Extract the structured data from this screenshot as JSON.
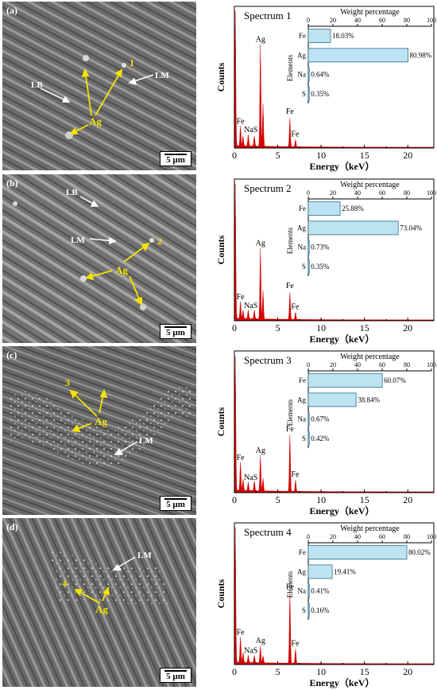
{
  "panels": [
    {
      "label": "(a)",
      "scale": "5 µm",
      "sem_labels": [
        {
          "text": "LB",
          "color": "#ffffff"
        },
        {
          "text": "LM",
          "color": "#ffffff"
        },
        {
          "text": "Ag",
          "color": "#f5e300"
        },
        {
          "text": "1",
          "color": "#f5e300"
        }
      ],
      "spectrum": {
        "title": "Spectrum 1",
        "peaks": [
          "Ag",
          "Fe",
          "Fe",
          "NaS",
          "Fe"
        ],
        "weights": [
          {
            "element": "Fe",
            "value": 18.03,
            "label": "18.03%"
          },
          {
            "element": "Ag",
            "value": 80.98,
            "label": "80.98%"
          },
          {
            "element": "Na",
            "value": 0.64,
            "label": "0.64%"
          },
          {
            "element": "S",
            "value": 0.35,
            "label": "0.35%"
          }
        ]
      }
    },
    {
      "label": "(b)",
      "scale": "5 µm",
      "sem_labels": [
        {
          "text": "LB",
          "color": "#ffffff"
        },
        {
          "text": "LM",
          "color": "#ffffff"
        },
        {
          "text": "Ag",
          "color": "#f5e300"
        },
        {
          "text": "2",
          "color": "#f5e300"
        }
      ],
      "spectrum": {
        "title": "Spectrum 2",
        "peaks": [
          "Ag",
          "Fe",
          "Fe",
          "NaS",
          "Fe"
        ],
        "weights": [
          {
            "element": "Fe",
            "value": 25.88,
            "label": "25.88%"
          },
          {
            "element": "Ag",
            "value": 73.04,
            "label": "73.04%"
          },
          {
            "element": "Na",
            "value": 0.73,
            "label": "0.73%"
          },
          {
            "element": "S",
            "value": 0.35,
            "label": "0.35%"
          }
        ]
      }
    },
    {
      "label": "(c)",
      "scale": "5 µm",
      "sem_labels": [
        {
          "text": "3",
          "color": "#f5e300"
        },
        {
          "text": "Ag",
          "color": "#f5e300"
        },
        {
          "text": "LM",
          "color": "#ffffff"
        }
      ],
      "spectrum": {
        "title": "Spectrum 3",
        "peaks": [
          "Ag",
          "Fe",
          "Fe",
          "NaS",
          "Fe"
        ],
        "weights": [
          {
            "element": "Fe",
            "value": 60.07,
            "label": "60.07%"
          },
          {
            "element": "Ag",
            "value": 38.84,
            "label": "38.84%"
          },
          {
            "element": "Na",
            "value": 0.67,
            "label": "0.67%"
          },
          {
            "element": "S",
            "value": 0.42,
            "label": "0.42%"
          }
        ]
      }
    },
    {
      "label": "(d)",
      "scale": "5 µm",
      "sem_labels": [
        {
          "text": "LM",
          "color": "#ffffff"
        },
        {
          "text": "4",
          "color": "#f5e300"
        },
        {
          "text": "Ag",
          "color": "#f5e300"
        }
      ],
      "spectrum": {
        "title": "Spectrum 4",
        "peaks": [
          "Ag",
          "Fe",
          "Fe",
          "NaS",
          "Fe"
        ],
        "weights": [
          {
            "element": "Fe",
            "value": 80.02,
            "label": "80.02%"
          },
          {
            "element": "Ag",
            "value": 19.41,
            "label": "19.41%"
          },
          {
            "element": "Na",
            "value": 0.41,
            "label": "0.41%"
          },
          {
            "element": "S",
            "value": 0.16,
            "label": "0.16%"
          }
        ]
      }
    }
  ],
  "axes": {
    "x_label": "Energy（keV）",
    "y_label": "Counts",
    "x_ticks": [
      "0",
      "5",
      "10",
      "15",
      "20"
    ],
    "inset_title": "Weight percentage",
    "inset_ticks": [
      "0",
      "20",
      "40",
      "60",
      "80",
      "100"
    ],
    "inset_ylabel": "Elements"
  },
  "chart_data": [
    {
      "type": "bar",
      "title": "Spectrum 1",
      "categories": [
        "Fe",
        "Ag",
        "Na",
        "S"
      ],
      "values": [
        18.03,
        80.98,
        0.64,
        0.35
      ],
      "xlabel": "Weight percentage",
      "ylabel": "Elements",
      "xlim": [
        0,
        100
      ]
    },
    {
      "type": "bar",
      "title": "Spectrum 2",
      "categories": [
        "Fe",
        "Ag",
        "Na",
        "S"
      ],
      "values": [
        25.88,
        73.04,
        0.73,
        0.35
      ],
      "xlabel": "Weight percentage",
      "ylabel": "Elements",
      "xlim": [
        0,
        100
      ]
    },
    {
      "type": "bar",
      "title": "Spectrum 3",
      "categories": [
        "Fe",
        "Ag",
        "Na",
        "S"
      ],
      "values": [
        60.07,
        38.84,
        0.67,
        0.42
      ],
      "xlabel": "Weight percentage",
      "ylabel": "Elements",
      "xlim": [
        0,
        100
      ]
    },
    {
      "type": "bar",
      "title": "Spectrum 4",
      "categories": [
        "Fe",
        "Ag",
        "Na",
        "S"
      ],
      "values": [
        80.02,
        19.41,
        0.41,
        0.16
      ],
      "xlabel": "Weight percentage",
      "ylabel": "Elements",
      "xlim": [
        0,
        100
      ]
    }
  ],
  "colors": {
    "spectrum_fill": "#d40000",
    "bar_fill": "#bde3f3",
    "bar_stroke": "#2b6f8c",
    "annotation": "#f5e300"
  }
}
